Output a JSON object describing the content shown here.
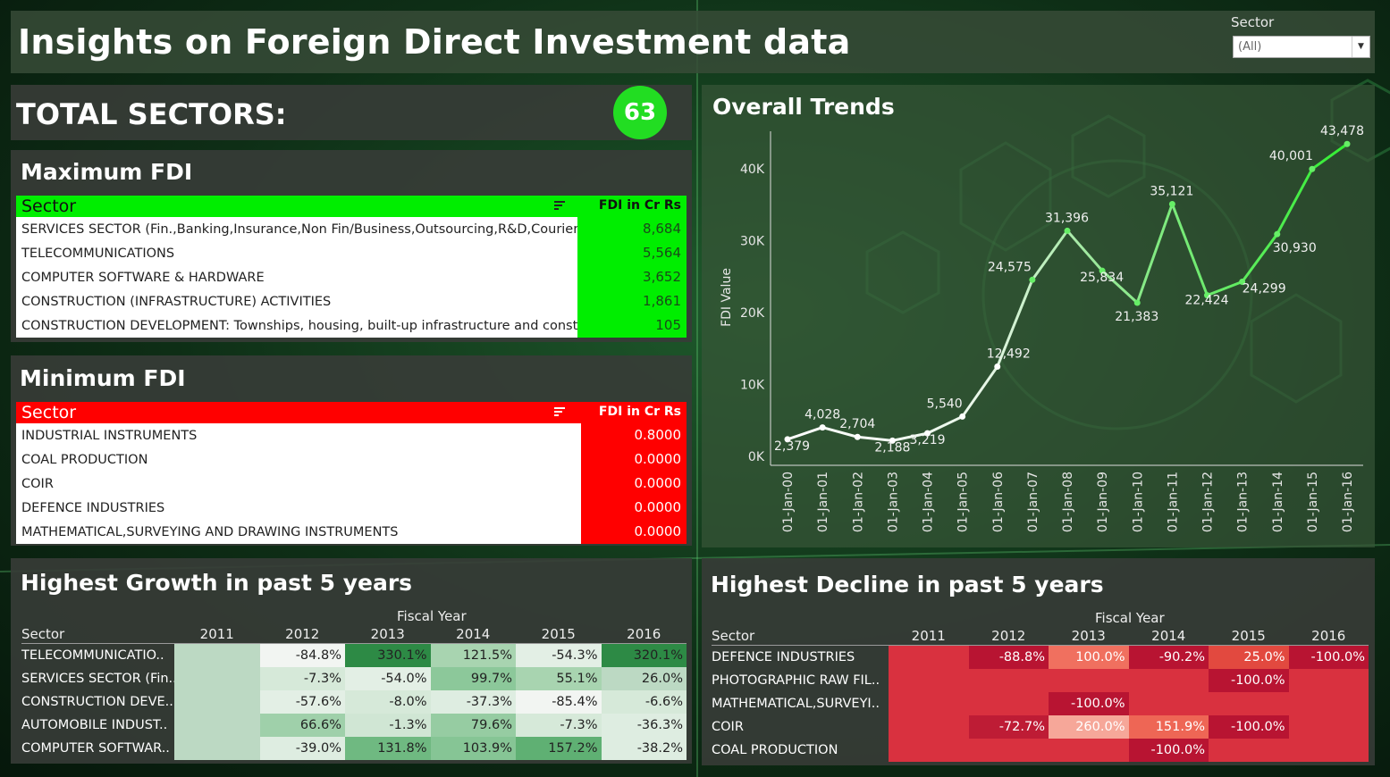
{
  "header": {
    "title": "Insights on Foreign Direct Investment data",
    "filter_label": "Sector",
    "filter_value": "(All)"
  },
  "total": {
    "label": "TOTAL SECTORS:",
    "value": "63",
    "color": "#22dd22"
  },
  "max_fdi": {
    "title": "Maximum FDI",
    "col_sector": "Sector",
    "col_value": "FDI in Cr Rs",
    "accent": "#00ee00",
    "rows": [
      {
        "sector": "SERVICES SECTOR (Fin.,Banking,Insurance,Non Fin/Business,Outsourcing,R&D,Courier..",
        "value": "8,684"
      },
      {
        "sector": "TELECOMMUNICATIONS",
        "value": "5,564"
      },
      {
        "sector": "COMPUTER SOFTWARE & HARDWARE",
        "value": "3,652"
      },
      {
        "sector": "CONSTRUCTION (INFRASTRUCTURE) ACTIVITIES",
        "value": "1,861"
      },
      {
        "sector": "CONSTRUCTION DEVELOPMENT: Townships, housing, built-up infrastructure and const..",
        "value": "105"
      }
    ]
  },
  "min_fdi": {
    "title": "Minimum FDI",
    "col_sector": "Sector",
    "col_value": "FDI in Cr Rs",
    "accent": "#ff0000",
    "rows": [
      {
        "sector": "INDUSTRIAL INSTRUMENTS",
        "value": "0.8000"
      },
      {
        "sector": "COAL PRODUCTION",
        "value": "0.0000"
      },
      {
        "sector": "COIR",
        "value": "0.0000"
      },
      {
        "sector": "DEFENCE INDUSTRIES",
        "value": "0.0000"
      },
      {
        "sector": "MATHEMATICAL,SURVEYING AND DRAWING INSTRUMENTS",
        "value": "0.0000"
      }
    ]
  },
  "chart_data": {
    "type": "line",
    "title": "Overall Trends",
    "xlabel": "",
    "ylabel": "FDI Value",
    "ylim": [
      0,
      45000
    ],
    "yticks": [
      "0K",
      "10K",
      "20K",
      "30K",
      "40K"
    ],
    "grid": false,
    "categories": [
      "01-Jan-00",
      "01-Jan-01",
      "01-Jan-02",
      "01-Jan-03",
      "01-Jan-04",
      "01-Jan-05",
      "01-Jan-06",
      "01-Jan-07",
      "01-Jan-08",
      "01-Jan-09",
      "01-Jan-10",
      "01-Jan-11",
      "01-Jan-12",
      "01-Jan-13",
      "01-Jan-14",
      "01-Jan-15",
      "01-Jan-16"
    ],
    "values": [
      2379,
      4028,
      2704,
      2188,
      3219,
      5540,
      12492,
      24575,
      31396,
      25834,
      21383,
      35121,
      22424,
      24299,
      30930,
      40001,
      43478
    ],
    "labels": [
      "2,379",
      "4,028",
      "2,704",
      "2,188",
      "3,219",
      "5,540",
      "12,492",
      "24,575",
      "31,396",
      "25,834",
      "21,383",
      "35,121",
      "22,424",
      "24,299",
      "30,930",
      "40,001",
      "43,478"
    ],
    "line_color_start": "#ffffff",
    "line_color_end": "#33ee33"
  },
  "growth": {
    "title": "Highest Growth in past 5 years",
    "col_group": "Fiscal Year",
    "col_sector": "Sector",
    "years": [
      "2011",
      "2012",
      "2013",
      "2014",
      "2015",
      "2016"
    ],
    "rows": [
      {
        "sector": "TELECOMMUNICATIO..",
        "cells": [
          "",
          "-84.8%",
          "330.1%",
          "121.5%",
          "-54.3%",
          "320.1%"
        ],
        "colors": [
          "#bcd9c3",
          "#f2f5f2",
          "#2d8a45",
          "#a8d4b0",
          "#e3efe5",
          "#2d8a45"
        ]
      },
      {
        "sector": "SERVICES SECTOR (Fin..",
        "cells": [
          "",
          "-7.3%",
          "-54.0%",
          "99.7%",
          "55.1%",
          "26.0%"
        ],
        "colors": [
          "#bcd9c3",
          "#d6e9d9",
          "#e3efe5",
          "#8cc89a",
          "#a8d4b0",
          "#bcd9c3"
        ]
      },
      {
        "sector": "CONSTRUCTION DEVE..",
        "cells": [
          "",
          "-57.6%",
          "-8.0%",
          "-37.3%",
          "-85.4%",
          "-6.6%"
        ],
        "colors": [
          "#bcd9c3",
          "#e3efe5",
          "#d6e9d9",
          "#deede1",
          "#f2f5f2",
          "#d6e9d9"
        ]
      },
      {
        "sector": "AUTOMOBILE INDUST..",
        "cells": [
          "",
          "66.6%",
          "-1.3%",
          "79.6%",
          "-7.3%",
          "-36.3%"
        ],
        "colors": [
          "#bcd9c3",
          "#9fd0aa",
          "#d0e6d4",
          "#96cca2",
          "#d6e9d9",
          "#deede1"
        ]
      },
      {
        "sector": "COMPUTER SOFTWAR..",
        "cells": [
          "",
          "-39.0%",
          "131.8%",
          "103.9%",
          "157.2%",
          "-38.2%"
        ],
        "colors": [
          "#bcd9c3",
          "#deede1",
          "#6fb981",
          "#86c595",
          "#5fb073",
          "#deede1"
        ]
      }
    ]
  },
  "decline": {
    "title": "Highest Decline in past 5 years",
    "col_group": "Fiscal Year",
    "col_sector": "Sector",
    "years": [
      "2011",
      "2012",
      "2013",
      "2014",
      "2015",
      "2016"
    ],
    "rows": [
      {
        "sector": "DEFENCE INDUSTRIES",
        "cells": [
          "",
          "-88.8%",
          "100.0%",
          "-90.2%",
          "25.0%",
          "-100.0%"
        ],
        "colors": [
          "#d9313f",
          "#b81432",
          "#f0705f",
          "#b81432",
          "#e2493f",
          "#b81432"
        ]
      },
      {
        "sector": "PHOTOGRAPHIC RAW FIL..",
        "cells": [
          "",
          "",
          "",
          "",
          "-100.0%",
          ""
        ],
        "colors": [
          "#d9313f",
          "#d9313f",
          "#d9313f",
          "#d9313f",
          "#b81432",
          "#d9313f"
        ]
      },
      {
        "sector": "MATHEMATICAL,SURVEYI..",
        "cells": [
          "",
          "",
          "-100.0%",
          "",
          "",
          ""
        ],
        "colors": [
          "#d9313f",
          "#d9313f",
          "#b81432",
          "#d9313f",
          "#d9313f",
          "#d9313f"
        ]
      },
      {
        "sector": "COIR",
        "cells": [
          "",
          "-72.7%",
          "260.0%",
          "151.9%",
          "-100.0%",
          ""
        ],
        "colors": [
          "#d9313f",
          "#be1c35",
          "#f6a799",
          "#ee6655",
          "#b81432",
          "#d9313f"
        ]
      },
      {
        "sector": "COAL PRODUCTION",
        "cells": [
          "",
          "",
          "",
          "-100.0%",
          "",
          ""
        ],
        "colors": [
          "#d9313f",
          "#d9313f",
          "#d9313f",
          "#b81432",
          "#d9313f",
          "#d9313f"
        ]
      }
    ]
  }
}
